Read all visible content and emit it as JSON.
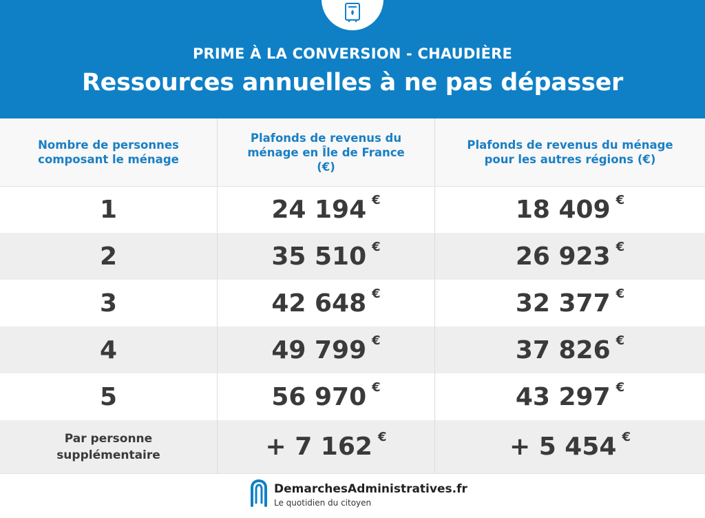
{
  "header": {
    "subtitle": "PRIME À LA CONVERSION - CHAUDIÈRE",
    "title": "Ressources annuelles à ne pas dépasser",
    "icon": "boiler-icon"
  },
  "table": {
    "columns": [
      "Nombre de personnes composant le ménage",
      "Plafonds de revenus du ménage en Île de France (€)",
      "Plafonds de revenus du ménage pour les autres régions (€)"
    ],
    "rows": [
      {
        "persons": "1",
        "idf": "24 194",
        "other": "18 409",
        "currency": "€"
      },
      {
        "persons": "2",
        "idf": "35 510",
        "other": "26 923",
        "currency": "€"
      },
      {
        "persons": "3",
        "idf": "42 648",
        "other": "32 377",
        "currency": "€"
      },
      {
        "persons": "4",
        "idf": "49 799",
        "other": "37 826",
        "currency": "€"
      },
      {
        "persons": "5",
        "idf": "56 970",
        "other": "43 297",
        "currency": "€"
      }
    ],
    "extra": {
      "label_line1": "Par personne",
      "label_line2": "supplémentaire",
      "idf": "+ 7 162",
      "other": "+ 5 454",
      "currency": "€"
    }
  },
  "footer": {
    "brand": "DemarchesAdministratives.fr",
    "tagline": "Le quotidien du citoyen",
    "colors": {
      "brand_blue": "#0f80c6",
      "header_text": "#1a7fc4"
    }
  }
}
